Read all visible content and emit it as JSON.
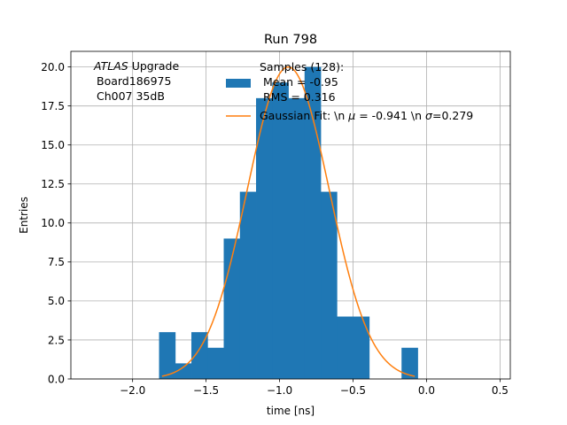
{
  "chart_data": {
    "type": "bar",
    "title": "Run 798",
    "xlabel": "time [ns]",
    "ylabel": "Entries",
    "xlim": [
      -2.42,
      0.57
    ],
    "ylim": [
      0,
      21
    ],
    "grid": true,
    "legend_position": "upper-right",
    "xticks": [
      -2.0,
      -1.5,
      -1.0,
      -0.5,
      0.0,
      0.5
    ],
    "xtick_labels": [
      "−2.0",
      "−1.5",
      "−1.0",
      "−0.5",
      "0.0",
      "0.5"
    ],
    "yticks": [
      0,
      2.5,
      5,
      7.5,
      10,
      12.5,
      15,
      17.5,
      20
    ],
    "ytick_labels": [
      "0.0",
      "2.5",
      "5.0",
      "7.5",
      "10.0",
      "12.5",
      "15.0",
      "17.5",
      "20.0"
    ],
    "annotation": {
      "italic": "ATLAS",
      "line1_rest": " Upgrade",
      "line2": "Board186975",
      "line3": "Ch007 35dB"
    },
    "histogram": {
      "color": "#1f77b4",
      "bin_edges": [
        -1.82,
        -1.71,
        -1.6,
        -1.49,
        -1.38,
        -1.27,
        -1.16,
        -1.05,
        -0.94,
        -0.83,
        -0.72,
        -0.61,
        -0.5,
        -0.39,
        -0.28,
        -0.17,
        -0.06
      ],
      "counts": [
        3,
        1,
        3,
        2,
        9,
        12,
        18,
        19,
        18,
        20,
        12,
        4,
        4,
        0,
        0,
        2
      ]
    },
    "fit": {
      "color": "#ff7f0e",
      "amplitude": 20.0,
      "mu": -0.941,
      "sigma": 0.279,
      "x_range": [
        -1.8,
        -0.08
      ]
    },
    "legend": {
      "samples_line1": "Samples (128):",
      "samples_line2": " Mean = -0.95",
      "samples_line3": " RMS = 0.316",
      "fit_prefix": "Gaussian Fit: \\n ",
      "fit_mu": "μ",
      "fit_mid": " = -0.941 \\n ",
      "fit_sigma": "σ",
      "fit_suffix": "=0.279"
    }
  }
}
